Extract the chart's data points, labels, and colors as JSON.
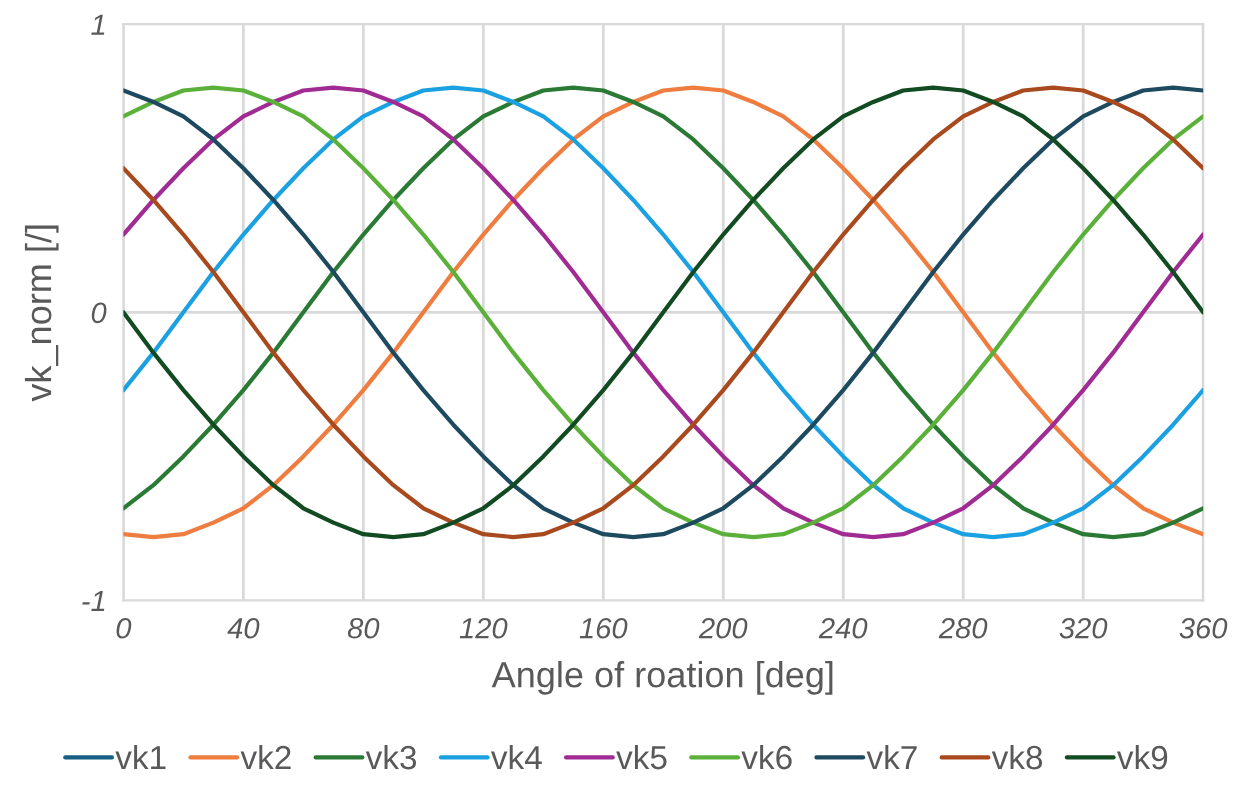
{
  "chart_data": {
    "type": "line",
    "xlabel": "Angle of roation [deg]",
    "ylabel": "vk_norm [/]",
    "x": [
      0,
      10,
      20,
      30,
      40,
      50,
      60,
      70,
      80,
      90,
      100,
      110,
      120,
      130,
      140,
      150,
      160,
      170,
      180,
      190,
      200,
      210,
      220,
      230,
      240,
      250,
      260,
      270,
      280,
      290,
      300,
      310,
      320,
      330,
      340,
      350,
      360
    ],
    "xlim": [
      0,
      360
    ],
    "xticks": [
      0,
      40,
      80,
      120,
      160,
      200,
      240,
      280,
      320,
      360
    ],
    "ylim": [
      -1,
      1
    ],
    "yticks": [
      -1,
      0,
      1
    ],
    "grid": "x",
    "legend": "bottom",
    "marker": "none",
    "line_style": "solid",
    "ref_lines": [
      {
        "axis": "y",
        "value": 0,
        "color": "#d9d9d9"
      }
    ],
    "series": [
      {
        "name": "vk1",
        "color": "#156082",
        "values": [
          null,
          null,
          null,
          null,
          null,
          null,
          null,
          null,
          null,
          null,
          null,
          null,
          null,
          null,
          null,
          null,
          null,
          null,
          null,
          null,
          null,
          null,
          null,
          null,
          null,
          null,
          null,
          null,
          null,
          null,
          null,
          null,
          null,
          null,
          null,
          null,
          null
        ]
      },
      {
        "name": "vk2",
        "color": "#EE7D3F",
        "values": [
          -0.77,
          -0.78,
          -0.77,
          -0.73,
          -0.68,
          -0.6,
          -0.5,
          -0.39,
          -0.27,
          -0.14,
          0,
          0.14,
          0.27,
          0.39,
          0.5,
          0.6,
          0.68,
          0.73,
          0.77,
          0.78,
          0.77,
          0.73,
          0.68,
          0.6,
          0.5,
          0.39,
          0.27,
          0.14,
          0,
          -0.14,
          -0.27,
          -0.39,
          -0.5,
          -0.6,
          -0.68,
          -0.73,
          -0.77
        ]
      },
      {
        "name": "vk3",
        "color": "#2A7A35",
        "values": [
          -0.68,
          -0.6,
          -0.5,
          -0.39,
          -0.27,
          -0.14,
          0,
          0.14,
          0.27,
          0.39,
          0.5,
          0.6,
          0.68,
          0.73,
          0.77,
          0.78,
          0.77,
          0.73,
          0.68,
          0.6,
          0.5,
          0.39,
          0.27,
          0.14,
          0,
          -0.14,
          -0.27,
          -0.39,
          -0.5,
          -0.6,
          -0.68,
          -0.73,
          -0.77,
          -0.78,
          -0.77,
          -0.73,
          -0.68
        ]
      },
      {
        "name": "vk4",
        "color": "#1BA1E2",
        "values": [
          -0.27,
          -0.14,
          0,
          0.14,
          0.27,
          0.39,
          0.5,
          0.6,
          0.68,
          0.73,
          0.77,
          0.78,
          0.77,
          0.73,
          0.68,
          0.6,
          0.5,
          0.39,
          0.27,
          0.14,
          0,
          -0.14,
          -0.27,
          -0.39,
          -0.5,
          -0.6,
          -0.68,
          -0.73,
          -0.77,
          -0.78,
          -0.77,
          -0.73,
          -0.68,
          -0.6,
          -0.5,
          -0.39,
          -0.27
        ]
      },
      {
        "name": "vk5",
        "color": "#A02B93",
        "values": [
          0.27,
          0.39,
          0.5,
          0.6,
          0.68,
          0.73,
          0.77,
          0.78,
          0.77,
          0.73,
          0.68,
          0.6,
          0.5,
          0.39,
          0.27,
          0.14,
          0,
          -0.14,
          -0.27,
          -0.39,
          -0.5,
          -0.6,
          -0.68,
          -0.73,
          -0.77,
          -0.78,
          -0.77,
          -0.73,
          -0.68,
          -0.6,
          -0.5,
          -0.39,
          -0.27,
          -0.14,
          0,
          0.14,
          0.27
        ]
      },
      {
        "name": "vk6",
        "color": "#5BB03A",
        "values": [
          0.68,
          0.73,
          0.77,
          0.78,
          0.77,
          0.73,
          0.68,
          0.6,
          0.5,
          0.39,
          0.27,
          0.14,
          0,
          -0.14,
          -0.27,
          -0.39,
          -0.5,
          -0.6,
          -0.68,
          -0.73,
          -0.77,
          -0.78,
          -0.77,
          -0.73,
          -0.68,
          -0.6,
          -0.5,
          -0.39,
          -0.27,
          -0.14,
          0,
          0.14,
          0.27,
          0.39,
          0.5,
          0.6,
          0.68
        ]
      },
      {
        "name": "vk7",
        "color": "#1D4A5E",
        "values": [
          0.77,
          0.73,
          0.68,
          0.6,
          0.5,
          0.39,
          0.27,
          0.14,
          0,
          -0.14,
          -0.27,
          -0.39,
          -0.5,
          -0.6,
          -0.68,
          -0.73,
          -0.77,
          -0.78,
          -0.77,
          -0.73,
          -0.68,
          -0.6,
          -0.5,
          -0.39,
          -0.27,
          -0.14,
          0,
          0.14,
          0.27,
          0.39,
          0.5,
          0.6,
          0.68,
          0.73,
          0.77,
          0.78,
          0.77
        ]
      },
      {
        "name": "vk8",
        "color": "#A84A1E",
        "values": [
          0.5,
          0.39,
          0.27,
          0.14,
          0,
          -0.14,
          -0.27,
          -0.39,
          -0.5,
          -0.6,
          -0.68,
          -0.73,
          -0.77,
          -0.78,
          -0.77,
          -0.73,
          -0.68,
          -0.6,
          -0.5,
          -0.39,
          -0.27,
          -0.14,
          0,
          0.14,
          0.27,
          0.39,
          0.5,
          0.6,
          0.68,
          0.73,
          0.77,
          0.78,
          0.77,
          0.73,
          0.68,
          0.6,
          0.5
        ]
      },
      {
        "name": "vk9",
        "color": "#124A22",
        "values": [
          0,
          -0.14,
          -0.27,
          -0.39,
          -0.5,
          -0.6,
          -0.68,
          -0.73,
          -0.77,
          -0.78,
          -0.77,
          -0.73,
          -0.68,
          -0.6,
          -0.5,
          -0.39,
          -0.27,
          -0.14,
          0,
          0.14,
          0.27,
          0.39,
          0.5,
          0.6,
          0.68,
          0.73,
          0.77,
          0.78,
          0.77,
          0.73,
          0.68,
          0.6,
          0.5,
          0.39,
          0.27,
          0.14,
          0
        ]
      }
    ]
  }
}
